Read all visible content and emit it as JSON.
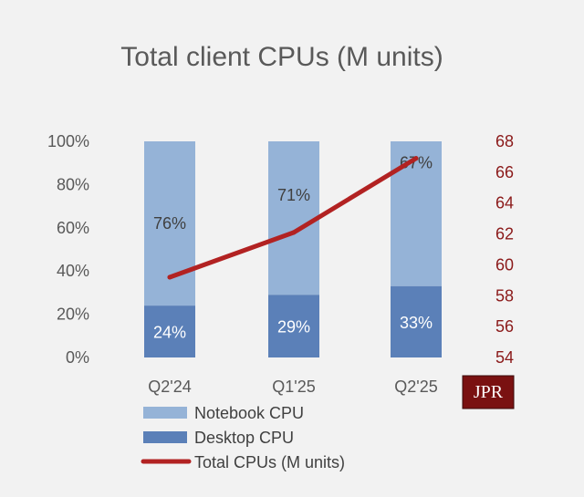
{
  "chart_data": {
    "type": "bar",
    "title": "Total client CPUs (M units)",
    "categories": [
      "Q2'24",
      "Q1'25",
      "Q2'25"
    ],
    "series": [
      {
        "name": "Notebook CPU",
        "values": [
          76,
          71,
          67
        ],
        "labels": [
          "76%",
          "71%",
          "67%"
        ],
        "color": "#95b3d7",
        "axis": "left"
      },
      {
        "name": "Desktop CPU",
        "values": [
          24,
          29,
          33
        ],
        "labels": [
          "24%",
          "29%",
          "33%"
        ],
        "color": "#5b80b8",
        "axis": "left"
      },
      {
        "name": "Total CPUs (M units)",
        "type": "line",
        "values": [
          59.2,
          62.1,
          66.9
        ],
        "color": "#b22222",
        "axis": "right"
      }
    ],
    "stacked": true,
    "ylim_left": [
      0,
      100
    ],
    "yticks_left": [
      "0%",
      "20%",
      "40%",
      "60%",
      "80%",
      "100%"
    ],
    "ylim_right": [
      54,
      68
    ],
    "yticks_right": [
      "54",
      "56",
      "58",
      "60",
      "62",
      "64",
      "66",
      "68"
    ],
    "grid": false,
    "legend_position": "bottom",
    "logo": "JPR"
  }
}
